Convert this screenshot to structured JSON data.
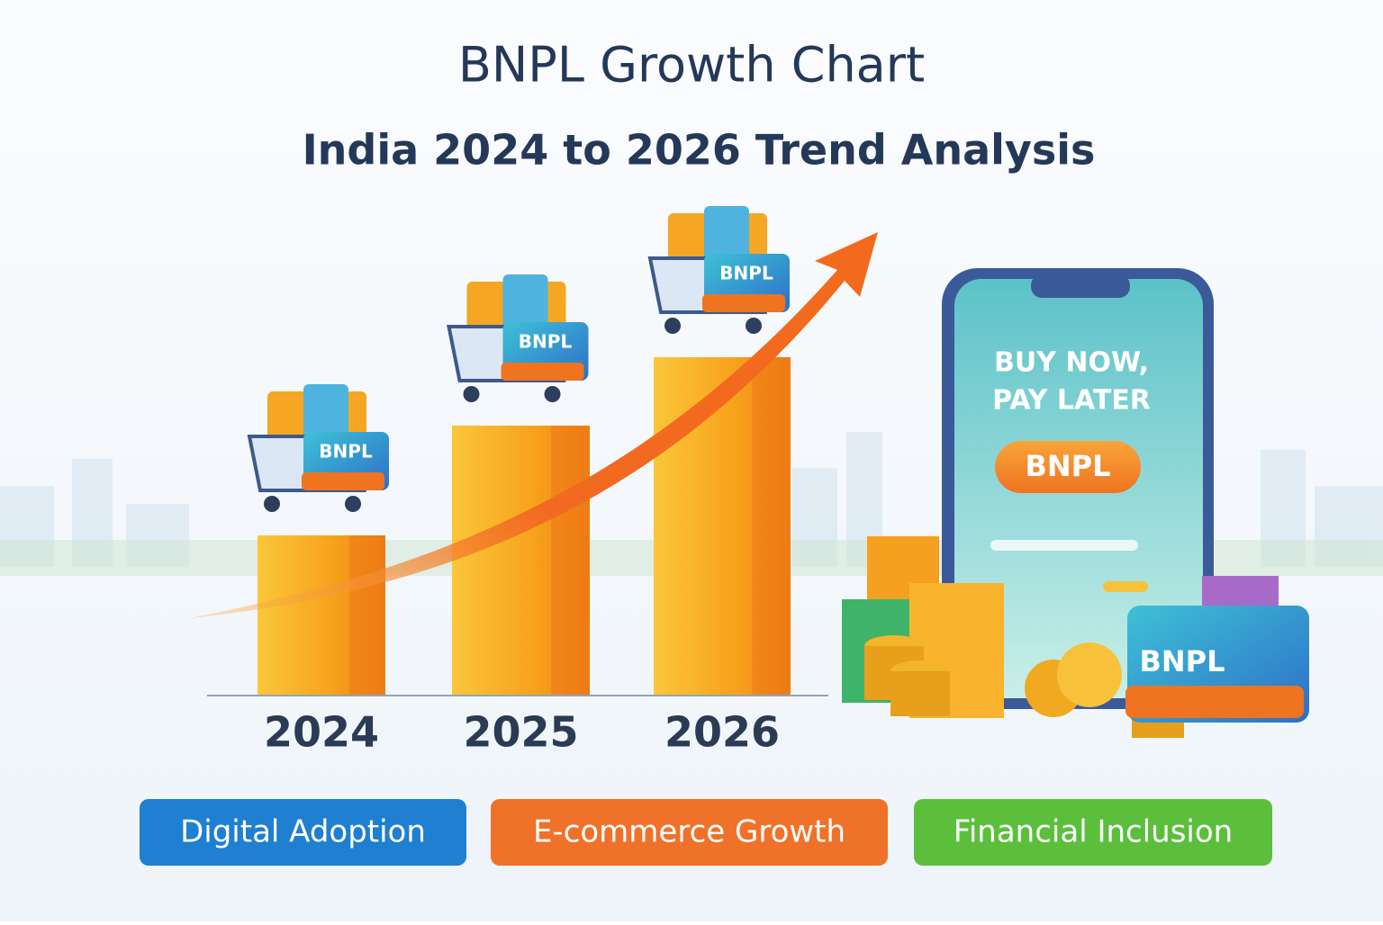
{
  "chart_data": {
    "type": "bar",
    "title": "BNPL Growth Chart",
    "subtitle": "India 2024 to 2026 Trend Analysis",
    "categories": [
      "2024",
      "2025",
      "2026"
    ],
    "values": [
      177,
      299,
      375
    ],
    "color": "#f7a21b",
    "ylim": [
      0,
      400
    ],
    "trend_arrow": true
  },
  "illustration": {
    "cart_labels": [
      "BNPL",
      "BNPL",
      "BNPL"
    ],
    "phone": {
      "headline": [
        "BUY NOW,",
        "PAY LATER"
      ],
      "button": "BNPL"
    },
    "card": "BNPL"
  },
  "tags": [
    {
      "label": "Digital Adoption",
      "color": "#1f7fd0"
    },
    {
      "label": "E-commerce Growth",
      "color": "#f0712a"
    },
    {
      "label": "Financial Inclusion",
      "color": "#5bbf3c"
    }
  ]
}
